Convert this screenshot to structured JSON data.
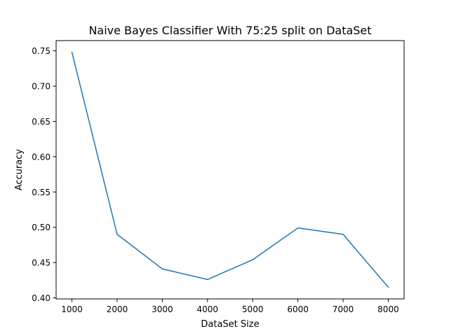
{
  "chart_data": {
    "type": "line",
    "title": "Naive Bayes Classifier With 75:25 split on DataSet",
    "xlabel": "DataSet Size",
    "ylabel": "Accuracy",
    "x": [
      1000,
      2000,
      3000,
      4000,
      5000,
      6000,
      7000,
      8000
    ],
    "series": [
      {
        "values": [
          0.748,
          0.49,
          0.441,
          0.426,
          0.454,
          0.499,
          0.49,
          0.415
        ],
        "color": "#1f77b4"
      }
    ],
    "xlim": [
      650,
      8350
    ],
    "ylim": [
      0.3985,
      0.7645
    ],
    "xticks": [
      1000,
      2000,
      3000,
      4000,
      5000,
      6000,
      7000,
      8000
    ],
    "xtick_labels": [
      "1000",
      "2000",
      "3000",
      "4000",
      "5000",
      "6000",
      "7000",
      "8000"
    ],
    "yticks": [
      0.4,
      0.45,
      0.5,
      0.55,
      0.6,
      0.65,
      0.7,
      0.75
    ],
    "ytick_labels": [
      "0.40",
      "0.45",
      "0.50",
      "0.55",
      "0.60",
      "0.65",
      "0.70",
      "0.75"
    ],
    "grid": false,
    "legend": "none"
  }
}
